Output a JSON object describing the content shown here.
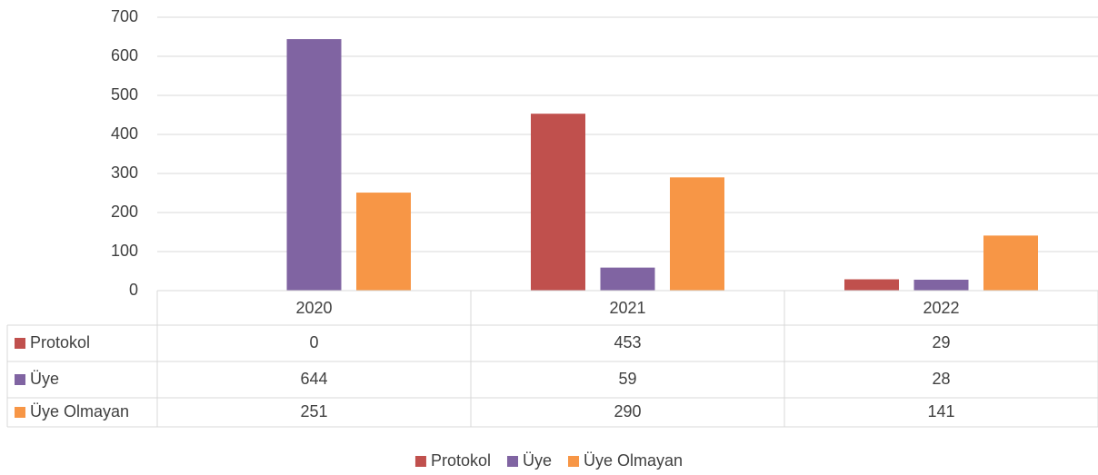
{
  "chart_data": {
    "type": "bar",
    "categories": [
      "2020",
      "2021",
      "2022"
    ],
    "series": [
      {
        "name": "Protokol",
        "color": "#c0504d",
        "values": [
          0,
          453,
          29
        ]
      },
      {
        "name": "Üye",
        "color": "#8064a2",
        "values": [
          644,
          59,
          28
        ]
      },
      {
        "name": "Üye Olmayan",
        "color": "#f79646",
        "values": [
          251,
          290,
          141
        ]
      }
    ],
    "ylim": [
      0,
      700
    ],
    "yticks": [
      0,
      100,
      200,
      300,
      400,
      500,
      600,
      700
    ],
    "grid": true,
    "legend": "bottom",
    "data_table": true
  }
}
